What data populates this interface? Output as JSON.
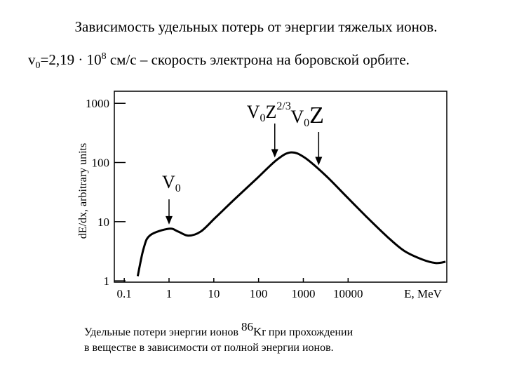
{
  "chart_data": {
    "type": "line",
    "title": "Зависимость удельных потерь от энергии тяжелых ионов.",
    "subtitle_parts": [
      "v",
      "0",
      "=2,19 · 10",
      "8",
      " см/с – скорость электрона на боровской орбите."
    ],
    "ylabel": "dE/dx, arbitrary units",
    "xlabel": "E, MeV",
    "xscale": "log",
    "yscale": "log",
    "xlim": [
      0.06,
      1600000
    ],
    "ylim": [
      0.95,
      1600
    ],
    "xticks": [
      0.1,
      1,
      10,
      100,
      1000,
      10000
    ],
    "yticks": [
      1,
      10,
      100,
      1000
    ],
    "color": "#000000",
    "x": [
      0.2,
      0.27,
      0.38,
      1,
      1.6,
      2.7,
      5.1,
      11,
      31,
      90,
      260,
      530,
      1070,
      3100,
      9000,
      26000,
      76000,
      180000,
      450000,
      900000,
      1500000
    ],
    "values": [
      1.2,
      3.5,
      5.9,
      7.6,
      6.8,
      5.8,
      6.8,
      11.8,
      25,
      53,
      112,
      148,
      121,
      61,
      27,
      12,
      5.5,
      3.2,
      2.3,
      2.0,
      2.1
    ],
    "annotations": [
      {
        "main": "V",
        "sub": "0",
        "x": 1
      },
      {
        "main": "V",
        "sub": "0",
        "tail": "Z",
        "sup": "2/3",
        "x": 230
      },
      {
        "main": "V",
        "sub": "0",
        "tail": "Z",
        "x": 2200
      }
    ],
    "caption_line1_parts": [
      "Удельные потери энергии ионов ",
      "86",
      "Kr",
      " при прохождении"
    ],
    "caption_line2": "в веществе в зависимости от полной энергии ионов."
  }
}
